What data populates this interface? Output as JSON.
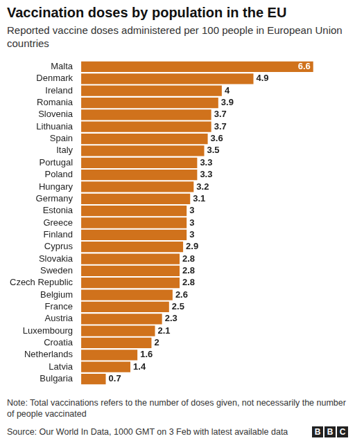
{
  "chart_data": {
    "type": "bar",
    "title": "Vaccination doses by population in the EU",
    "subtitle": "Reported vaccine doses administered per 100 people in European Union countries",
    "note": "Note: Total vaccinations refers to the number of doses given, not necessarily the number of people vaccinated",
    "source": "Source: Our World In Data, 1000 GMT on 3 Feb with latest available data",
    "logo": "BBC",
    "categories": [
      "Malta",
      "Denmark",
      "Ireland",
      "Romania",
      "Slovenia",
      "Lithuania",
      "Spain",
      "Italy",
      "Portugal",
      "Poland",
      "Hungary",
      "Germany",
      "Estonia",
      "Greece",
      "Finland",
      "Cyprus",
      "Slovakia",
      "Sweden",
      "Czech Republic",
      "Belgium",
      "France",
      "Austria",
      "Luxembourg",
      "Croatia",
      "Netherlands",
      "Latvia",
      "Bulgaria"
    ],
    "values": [
      6.6,
      4.9,
      4,
      3.9,
      3.7,
      3.7,
      3.6,
      3.5,
      3.3,
      3.3,
      3.2,
      3.1,
      3,
      3,
      3,
      2.9,
      2.8,
      2.8,
      2.8,
      2.6,
      2.5,
      2.3,
      2.1,
      2,
      1.6,
      1.4,
      0.7
    ],
    "color": "#d0721c",
    "orientation": "horizontal",
    "data_labels": true,
    "grid": false,
    "tick_labels": "y"
  }
}
